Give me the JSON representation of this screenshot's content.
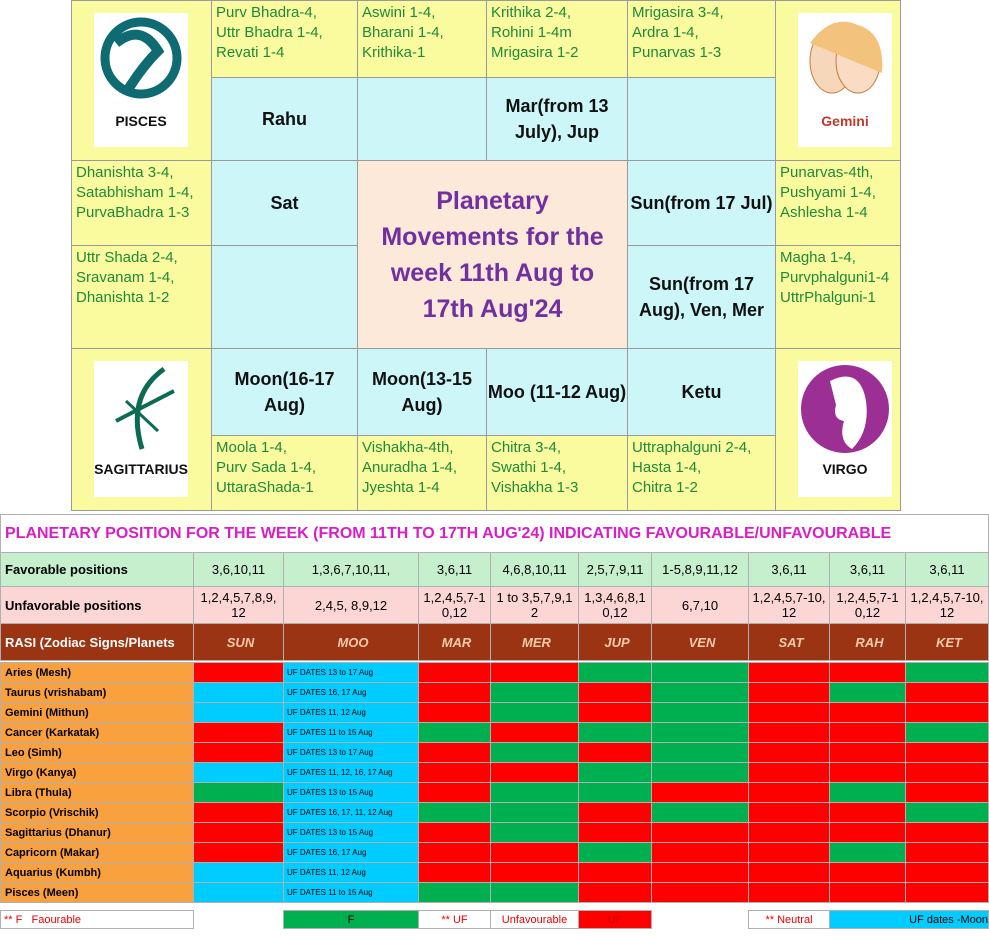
{
  "top": {
    "title": "Planetary Movements for the week 11th Aug to 17th Aug'24",
    "corners": [
      "PISCES",
      "Gemini",
      "SAGITTARIUS",
      "VIRGO"
    ],
    "nakshatras": [
      [
        "Purv Bhadra-4,",
        "Uttr Bhadra 1-4,",
        "Revati 1-4"
      ],
      [
        "Aswini 1-4,",
        "Bharani 1-4,",
        "Krithika-1"
      ],
      [
        "Krithika 2-4,",
        "Rohini 1-4m",
        "Mrigasira 1-2"
      ],
      [
        "Mrigasira 3-4,",
        "Ardra 1-4,",
        "Punarvas 1-3"
      ],
      [
        "Punarvas-4th,",
        "Pushyami 1-4,",
        "Ashlesha 1-4"
      ],
      [
        "Magha 1-4,",
        "Purvphalguni1-4",
        "UttrPhalguni-1"
      ],
      [
        "Uttraphalguni 2-4,",
        "Hasta 1-4,",
        "Chitra 1-2"
      ],
      [
        "Chitra 3-4,",
        "Swathi 1-4,",
        "Vishakha 1-3"
      ],
      [
        "Vishakha-4th,",
        "Anuradha 1-4,",
        "Jyeshta 1-4"
      ],
      [
        "Moola 1-4,",
        "Purv Sada 1-4,",
        "UttaraShada-1"
      ],
      [
        "Uttr Shada 2-4,",
        "Sravanam 1-4,",
        "Dhanishta 1-2"
      ],
      [
        "Dhanishta 3-4,",
        "Satabhisham 1-4,",
        "PurvaBhadra 1-3"
      ]
    ],
    "planets": [
      "Rahu",
      "Mar(from 13 July), Jup",
      "Sun(from 17 Jul)",
      "Sun(from 17 Aug), Ven, Mer",
      "Ketu",
      "Moo (11-12 Aug)",
      "Moon(13-15 Aug)",
      "Moon(16-17 Aug)",
      "Sat"
    ]
  },
  "table": {
    "title": "PLANETARY POSITION FOR THE WEEK (FROM 11TH TO 17TH AUG'24) INDICATING FAVOURABLE/UNFAVOURABLE",
    "favorable": {
      "label": "Favorable positions",
      "values": [
        "3,6,10,11",
        "1,3,6,7,10,11,",
        "3,6,11",
        "4,6,8,10,11",
        "2,5,7,9,11",
        "1-5,8,9,11,12",
        "3,6,11",
        "3,6,11",
        "3,6,11"
      ]
    },
    "unfavorable": {
      "label": "Unfavorable positions",
      "values": [
        "1,2,4,5,7,8,9,12",
        "2,4,5, 8,9,12",
        "1,2,4,5,7-10,12",
        "1 to 3,5,7,9,12",
        "1,3,4,6,8,10,12",
        "6,7,10",
        "1,2,4,5,7-10,12",
        "1,2,4,5,7-10,12",
        "1,2,4,5,7-10,12"
      ]
    },
    "header": [
      "RASI (Zodiac Signs/Planets",
      "SUN",
      "MOO",
      "MAR",
      "MER",
      "JUP",
      "VEN",
      "SAT",
      "RAH",
      "KET"
    ],
    "rows": [
      {
        "rasi": "Aries (Mesh)",
        "moon": "UF DATES 13 to 17 Aug"
      },
      {
        "rasi": "Taurus (vrishabam)",
        "moon": "UF DATES 16, 17 Aug"
      },
      {
        "rasi": "Gemini (Mithun)",
        "moon": "UF DATES 11, 12 Aug"
      },
      {
        "rasi": "Cancer (Karkatak)",
        "moon": "UF DATES 11 to 15 Aug"
      },
      {
        "rasi": "Leo (Simh)",
        "moon": "UF DATES 13 to 17  Aug"
      },
      {
        "rasi": "Virgo (Kanya)",
        "moon": "UF DATES 11, 12, 16, 17 Aug"
      },
      {
        "rasi": "Libra (Thula)",
        "moon": "UF DATES 13 to 15 Aug"
      },
      {
        "rasi": "Scorpio (Vrischik)",
        "moon": "UF DATES 16, 17, 11, 12 Aug"
      },
      {
        "rasi": "Sagittarius (Dhanur)",
        "moon": "UF DATES 13 to 15 Aug"
      },
      {
        "rasi": "Capricorn (Makar)",
        "moon": "UF DATES 16, 17 Aug"
      },
      {
        "rasi": "Aquarius (Kumbh)",
        "moon": "UF DATES 11, 12 Aug"
      },
      {
        "rasi": "Pisces (Meen)",
        "moon": "UF DATES 11 to 15 Aug"
      }
    ],
    "legend": [
      "** F   Faourable",
      "F",
      "** UF",
      "Unfavourable",
      "UF",
      "** Neutral",
      "UF dates -Moon"
    ]
  }
}
